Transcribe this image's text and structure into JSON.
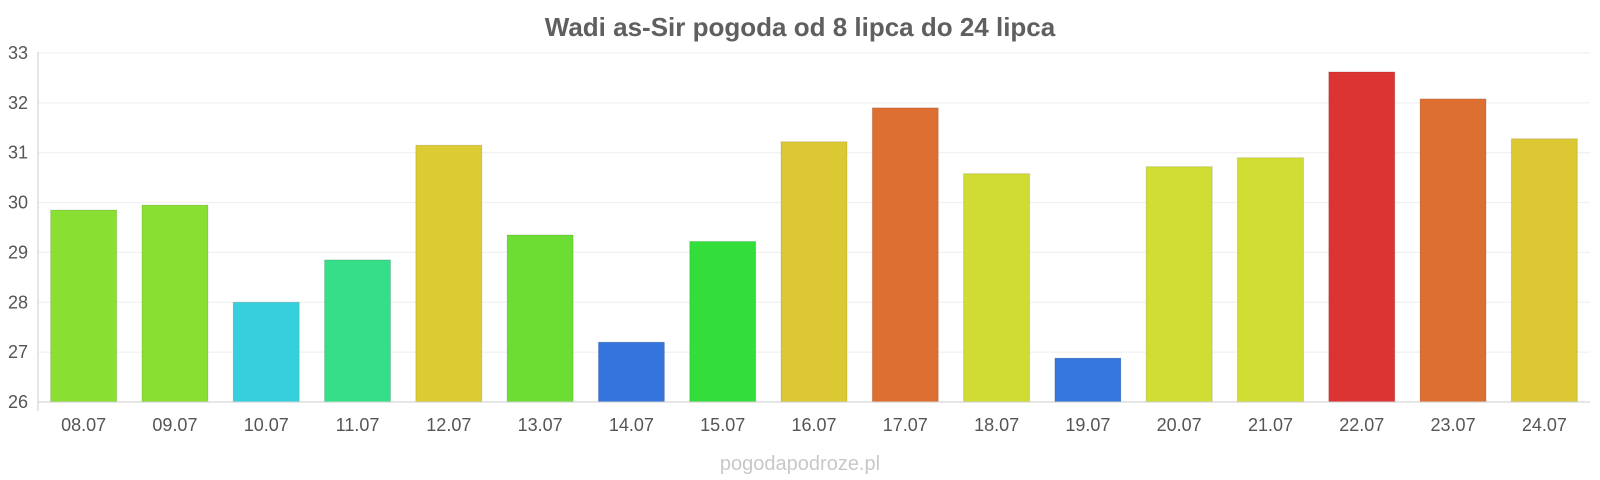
{
  "chart_data": {
    "type": "bar",
    "title": "Wadi as-Sir pogoda od 8 lipca do 24 lipca",
    "xlabel": "",
    "ylabel": "",
    "ylim": [
      26,
      33
    ],
    "yticks": [
      26,
      27,
      28,
      29,
      30,
      31,
      32,
      33
    ],
    "grid": true,
    "categories": [
      "08.07",
      "09.07",
      "10.07",
      "11.07",
      "12.07",
      "13.07",
      "14.07",
      "15.07",
      "16.07",
      "17.07",
      "18.07",
      "19.07",
      "20.07",
      "21.07",
      "22.07",
      "23.07",
      "24.07"
    ],
    "values": [
      29.85,
      29.95,
      28.0,
      28.85,
      31.15,
      29.35,
      27.2,
      29.22,
      31.22,
      31.9,
      30.58,
      26.88,
      30.72,
      30.9,
      32.62,
      32.08,
      31.28
    ],
    "colors": [
      "#8adf33",
      "#8adf33",
      "#36d0dc",
      "#35df8a",
      "#dccb33",
      "#6cdd33",
      "#3574dc",
      "#33dd3a",
      "#dcc833",
      "#dd6f33",
      "#d0dc33",
      "#3576dc",
      "#d0dd33",
      "#d0dd33",
      "#dc3333",
      "#dd6f33",
      "#dcc833"
    ]
  },
  "watermark": "pogodapodroze.pl"
}
